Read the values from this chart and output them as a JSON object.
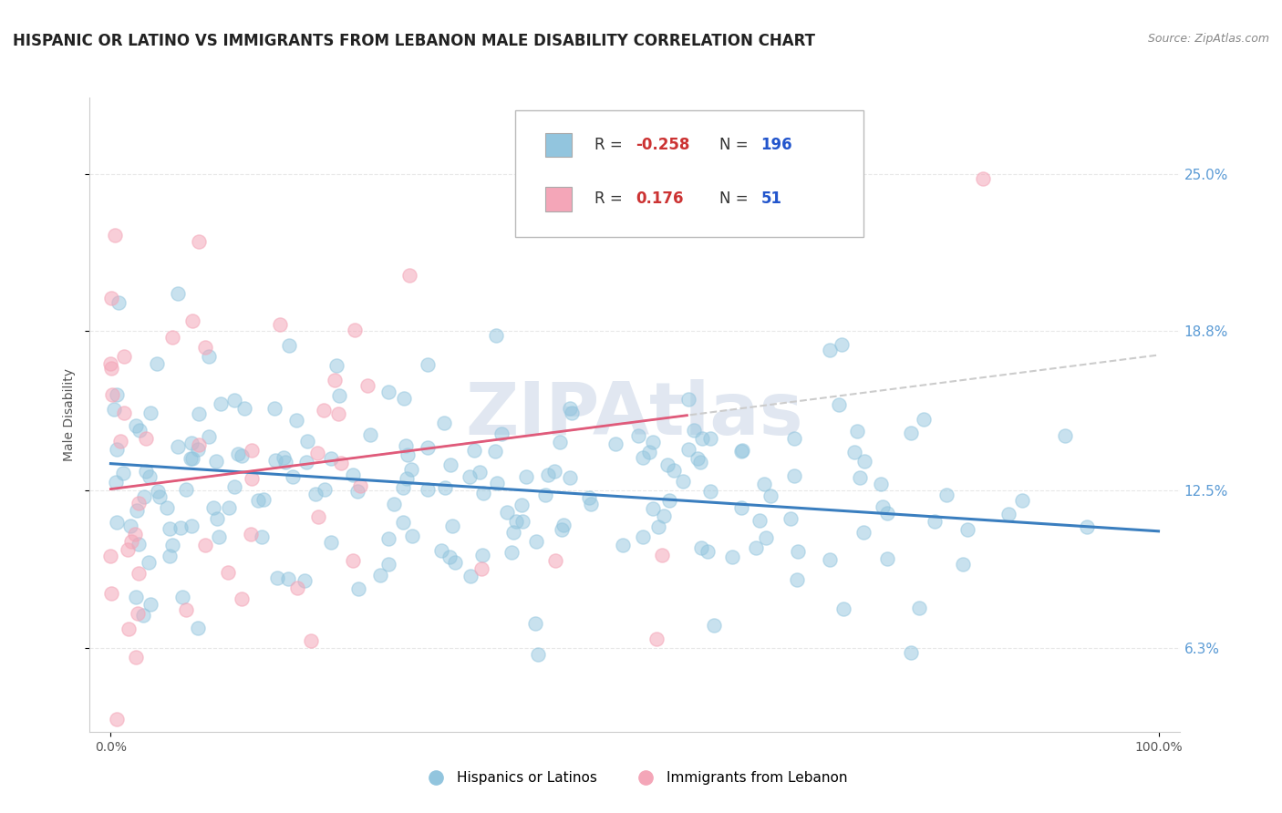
{
  "title": "HISPANIC OR LATINO VS IMMIGRANTS FROM LEBANON MALE DISABILITY CORRELATION CHART",
  "source": "Source: ZipAtlas.com",
  "ylabel": "Male Disability",
  "series1_label": "Hispanics or Latinos",
  "series2_label": "Immigrants from Lebanon",
  "series1_color": "#92c5de",
  "series2_color": "#f4a6b8",
  "series1_line_color": "#3a7ebf",
  "series2_line_color": "#e05a7a",
  "series2_dash_color": "#cccccc",
  "R1": -0.258,
  "N1": 196,
  "R2": 0.176,
  "N2": 51,
  "xlim": [
    -2,
    102
  ],
  "ylim": [
    3,
    28
  ],
  "yticks": [
    6.3,
    12.5,
    18.8,
    25.0
  ],
  "xticks": [
    0,
    100
  ],
  "xtick_labels": [
    "0.0%",
    "100.0%"
  ],
  "ytick_labels": [
    "6.3%",
    "12.5%",
    "18.8%",
    "25.0%"
  ],
  "background_color": "#ffffff",
  "watermark": "ZIPAtlas",
  "watermark_color": "#cdd8e8",
  "grid_color": "#e8e8e8",
  "title_fontsize": 12,
  "axis_fontsize": 10,
  "seed1": 42,
  "seed2": 77
}
